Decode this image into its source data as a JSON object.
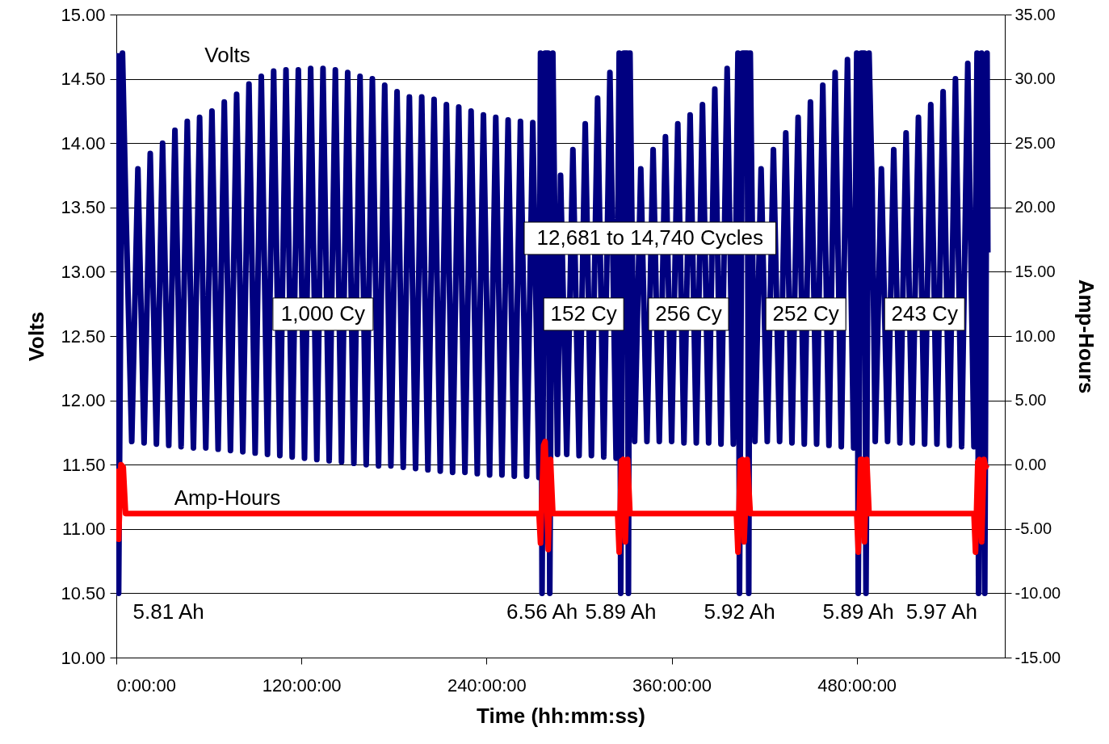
{
  "chart_data": {
    "type": "line",
    "xlabel": "Time (hh:mm:ss)",
    "ylabel": "Volts",
    "y2label": "Amp-Hours",
    "xlim": [
      0,
      576
    ],
    "xticks": [
      {
        "value": 0,
        "label": "0:00:00"
      },
      {
        "value": 120,
        "label": "120:00:00"
      },
      {
        "value": 240,
        "label": "240:00:00"
      },
      {
        "value": 360,
        "label": "360:00:00"
      },
      {
        "value": 480,
        "label": "480:00:00"
      }
    ],
    "ylim": [
      10,
      15
    ],
    "yticks": [
      {
        "value": 10,
        "label": "10.00"
      },
      {
        "value": 10.5,
        "label": "10.50"
      },
      {
        "value": 11,
        "label": "11.00"
      },
      {
        "value": 11.5,
        "label": "11.50"
      },
      {
        "value": 12,
        "label": "12.00"
      },
      {
        "value": 12.5,
        "label": "12.50"
      },
      {
        "value": 13,
        "label": "13.00"
      },
      {
        "value": 13.5,
        "label": "13.50"
      },
      {
        "value": 14,
        "label": "14.00"
      },
      {
        "value": 14.5,
        "label": "14.50"
      },
      {
        "value": 15,
        "label": "15.00"
      }
    ],
    "y2lim": [
      -15,
      35
    ],
    "y2ticks": [
      {
        "value": -15,
        "label": "-15.00"
      },
      {
        "value": -10,
        "label": "-10.00"
      },
      {
        "value": -5,
        "label": "-5.00"
      },
      {
        "value": 0,
        "label": "0.00"
      },
      {
        "value": 5,
        "label": "5.00"
      },
      {
        "value": 10,
        "label": "10.00"
      },
      {
        "value": 15,
        "label": "15.00"
      },
      {
        "value": 20,
        "label": "20.00"
      },
      {
        "value": 25,
        "label": "25.00"
      },
      {
        "value": 30,
        "label": "30.00"
      },
      {
        "value": 35,
        "label": "35.00"
      }
    ],
    "grid": "y",
    "legend": false,
    "marker": "none",
    "line_style": "solid",
    "series": [
      {
        "name": "Volts",
        "color": "#000080",
        "x": [
          0.5,
          1.5,
          4,
          6,
          10,
          14,
          18,
          22,
          26,
          30,
          34,
          38,
          42,
          46,
          50,
          54,
          58,
          62,
          66,
          70,
          74,
          78,
          82,
          86,
          90,
          94,
          98,
          102,
          106,
          110,
          114,
          118,
          122,
          126,
          130,
          134,
          138,
          142,
          146,
          150,
          154,
          158,
          162,
          166,
          170,
          174,
          178,
          182,
          186,
          190,
          194,
          198,
          202,
          206,
          210,
          214,
          218,
          222,
          226,
          230,
          234,
          238,
          242,
          246,
          250,
          254,
          258,
          262,
          266,
          270,
          274,
          275,
          276,
          278,
          280,
          281,
          283,
          284,
          286,
          288,
          292,
          296,
          300,
          304,
          308,
          312,
          316,
          320,
          324,
          326,
          327,
          329,
          331,
          332,
          333,
          334,
          336,
          340,
          344,
          348,
          352,
          356,
          360,
          364,
          368,
          372,
          376,
          380,
          384,
          388,
          392,
          396,
          400,
          403,
          404,
          406,
          409,
          410,
          411,
          412,
          414,
          418,
          422,
          426,
          430,
          434,
          438,
          442,
          446,
          450,
          454,
          458,
          462,
          466,
          470,
          474,
          478,
          480,
          481,
          483,
          485,
          486,
          488,
          490,
          492,
          496,
          500,
          504,
          508,
          512,
          516,
          520,
          524,
          528,
          532,
          536,
          540,
          544,
          548,
          552,
          556,
          558,
          559,
          561,
          563,
          564.5,
          565
        ],
        "values": [
          14.7,
          10.5,
          14.7,
          13.6,
          11.68,
          13.8,
          11.67,
          13.92,
          11.66,
          14.0,
          11.65,
          14.1,
          11.64,
          14.17,
          11.63,
          14.2,
          11.63,
          14.25,
          11.62,
          14.32,
          11.61,
          14.38,
          11.6,
          14.46,
          11.59,
          14.52,
          11.58,
          14.56,
          11.57,
          14.57,
          11.56,
          14.57,
          11.55,
          14.58,
          11.54,
          14.58,
          11.53,
          14.57,
          11.52,
          14.55,
          11.51,
          14.52,
          11.5,
          14.5,
          11.49,
          14.45,
          11.49,
          14.4,
          11.48,
          14.36,
          11.47,
          14.36,
          11.46,
          14.34,
          11.45,
          14.3,
          11.44,
          14.28,
          11.44,
          14.25,
          11.43,
          14.22,
          11.42,
          14.2,
          11.42,
          14.18,
          11.41,
          14.17,
          11.41,
          14.16,
          11.4,
          14.7,
          10.5,
          14.7,
          14.7,
          10.5,
          14.7,
          13.65,
          11.58,
          13.75,
          11.58,
          13.95,
          11.57,
          14.15,
          11.57,
          14.35,
          11.56,
          14.55,
          11.55,
          14.7,
          10.5,
          14.7,
          14.7,
          10.5,
          14.7,
          13.65,
          11.68,
          13.8,
          11.68,
          13.95,
          11.68,
          14.05,
          11.68,
          14.15,
          11.67,
          14.22,
          11.67,
          14.3,
          11.67,
          14.42,
          11.66,
          14.58,
          11.66,
          14.7,
          10.5,
          14.7,
          14.7,
          10.5,
          14.7,
          13.65,
          11.68,
          13.8,
          11.68,
          13.95,
          11.68,
          14.08,
          11.67,
          14.2,
          11.66,
          14.32,
          11.66,
          14.45,
          11.65,
          14.55,
          11.64,
          14.65,
          11.63,
          14.7,
          10.5,
          14.7,
          14.7,
          10.5,
          14.7,
          13.65,
          11.68,
          13.8,
          11.68,
          13.95,
          11.67,
          14.08,
          11.67,
          14.2,
          11.66,
          14.3,
          11.66,
          14.4,
          11.65,
          14.5,
          11.64,
          14.62,
          11.64,
          14.7,
          10.5,
          14.7,
          10.5,
          14.7,
          13.15
        ]
      },
      {
        "name": "Amp-Hours",
        "color": "#ff0000",
        "axis": "y2",
        "x": [
          0.5,
          1.5,
          3,
          4.5,
          6,
          274,
          275,
          277,
          278,
          280,
          281.5,
          283,
          325,
          326,
          327.5,
          328.5,
          330,
          331.5,
          333,
          402,
          403,
          404.5,
          406,
          407,
          409,
          411,
          480,
          481,
          482.5,
          483.5,
          485,
          486.5,
          488,
          556,
          557,
          558.5,
          559.5,
          561,
          562.5,
          563.5,
          564.5
        ],
        "values": [
          -0.3,
          -5.8,
          0.0,
          -0.2,
          -3.8,
          -3.8,
          -6.1,
          1.5,
          1.8,
          -6.6,
          0.4,
          -3.8,
          -3.8,
          -6.8,
          0.3,
          0.4,
          -6.0,
          0.4,
          -3.8,
          -3.8,
          -6.8,
          0.3,
          0.4,
          -6.0,
          0.4,
          -3.8,
          -3.8,
          -6.8,
          0.4,
          0.4,
          -6.0,
          0.4,
          -3.8,
          -3.8,
          -6.8,
          0.2,
          0.4,
          -6.0,
          0.4,
          -0.2,
          0.0
        ]
      }
    ],
    "annotations": [
      {
        "text": "1,000 Cy",
        "x": 134,
        "y": 12.67
      },
      {
        "text": "152 Cy",
        "x": 303,
        "y": 12.67
      },
      {
        "text": "256 Cy",
        "x": 371,
        "y": 12.67
      },
      {
        "text": "252 Cy",
        "x": 447,
        "y": 12.67
      },
      {
        "text": "243 Cy",
        "x": 524,
        "y": 12.67
      },
      {
        "text": "12,681 to 14,740 Cycles",
        "x": 346,
        "y": 13.26
      },
      {
        "text": "5.81 Ah",
        "x": 1.5,
        "y": 10.5
      },
      {
        "text": "6.56 Ah",
        "x": 276,
        "y": 10.5
      },
      {
        "text": "5.89 Ah",
        "x": 327,
        "y": 10.5
      },
      {
        "text": "5.92 Ah",
        "x": 404,
        "y": 10.5
      },
      {
        "text": "5.89 Ah",
        "x": 481,
        "y": 10.5
      },
      {
        "text": "5.97 Ah",
        "x": 559,
        "y": 10.5
      }
    ]
  }
}
